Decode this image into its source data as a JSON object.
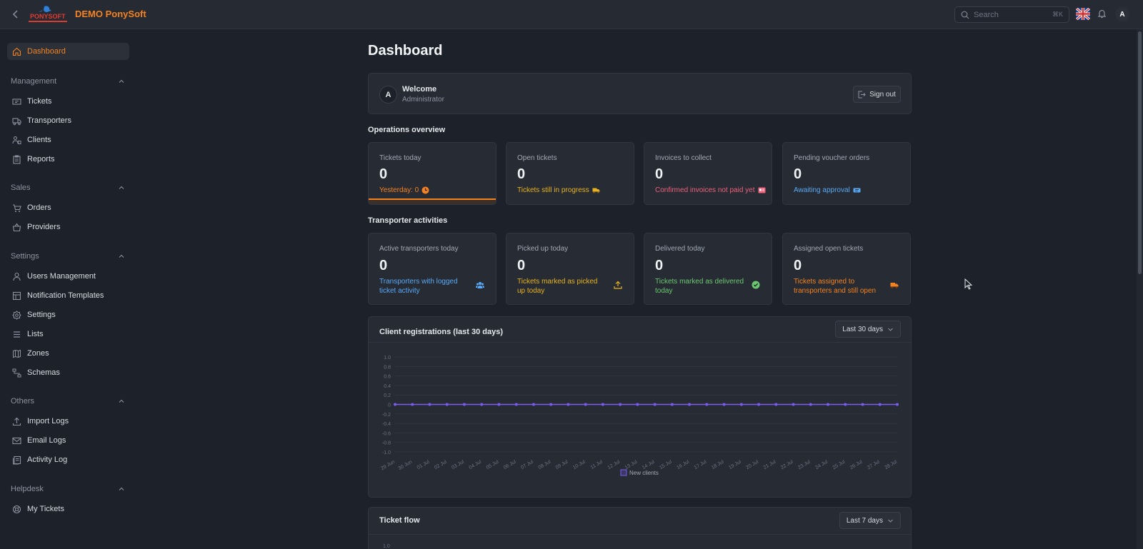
{
  "header": {
    "brand": "DEMO PonySoft",
    "logo_text": "PONYSOFT",
    "search_placeholder": "Search",
    "search_shortcut": "⌘K",
    "user_initial": "A",
    "language": "English (UK)"
  },
  "sidebar": {
    "dashboard": "Dashboard",
    "sections": {
      "management": {
        "title": "Management",
        "items": [
          "Tickets",
          "Transporters",
          "Clients",
          "Reports"
        ]
      },
      "sales": {
        "title": "Sales",
        "items": [
          "Orders",
          "Providers"
        ]
      },
      "settings": {
        "title": "Settings",
        "items": [
          "Users Management",
          "Notification Templates",
          "Settings",
          "Lists",
          "Zones",
          "Schemas"
        ]
      },
      "others": {
        "title": "Others",
        "items": [
          "Import Logs",
          "Email Logs",
          "Activity Log"
        ]
      },
      "helpdesk": {
        "title": "Helpdesk",
        "items": [
          "My Tickets"
        ]
      }
    }
  },
  "main": {
    "title": "Dashboard",
    "welcome": {
      "initial": "A",
      "title": "Welcome",
      "role": "Administrator",
      "sign_out": "Sign out"
    },
    "operations": {
      "title": "Operations overview",
      "cards": [
        {
          "label": "Tickets today",
          "value": "0",
          "sub": "Yesterday: 0"
        },
        {
          "label": "Open tickets",
          "value": "0",
          "sub": "Tickets still in progress"
        },
        {
          "label": "Invoices to collect",
          "value": "0",
          "sub": "Confirmed invoices not paid yet"
        },
        {
          "label": "Pending voucher orders",
          "value": "0",
          "sub": "Awaiting approval"
        }
      ]
    },
    "transporter": {
      "title": "Transporter activities",
      "cards": [
        {
          "label": "Active transporters today",
          "value": "0",
          "sub": "Transporters with logged ticket activity"
        },
        {
          "label": "Picked up today",
          "value": "0",
          "sub": "Tickets marked as picked up today"
        },
        {
          "label": "Delivered today",
          "value": "0",
          "sub": "Tickets marked as delivered today"
        },
        {
          "label": "Assigned open tickets",
          "value": "0",
          "sub": "Tickets assigned to transporters and still open"
        }
      ]
    },
    "registrations": {
      "title": "Client registrations (last 30 days)",
      "range": "Last 30 days"
    },
    "ticket_flow": {
      "title": "Ticket flow",
      "range": "Last 7 days",
      "first_tick": "1.0"
    }
  },
  "chart_data": {
    "type": "line",
    "title": "Client registrations (last 30 days)",
    "categories": [
      "29 Jun",
      "30 Jun",
      "01 Jul",
      "02 Jul",
      "03 Jul",
      "04 Jul",
      "05 Jul",
      "06 Jul",
      "07 Jul",
      "08 Jul",
      "09 Jul",
      "10 Jul",
      "11 Jul",
      "12 Jul",
      "13 Jul",
      "14 Jul",
      "15 Jul",
      "16 Jul",
      "17 Jul",
      "18 Jul",
      "19 Jul",
      "20 Jul",
      "21 Jul",
      "22 Jul",
      "23 Jul",
      "24 Jul",
      "25 Jul",
      "26 Jul",
      "27 Jul",
      "28 Jul"
    ],
    "series": [
      {
        "name": "New clients",
        "values": [
          0,
          0,
          0,
          0,
          0,
          0,
          0,
          0,
          0,
          0,
          0,
          0,
          0,
          0,
          0,
          0,
          0,
          0,
          0,
          0,
          0,
          0,
          0,
          0,
          0,
          0,
          0,
          0,
          0,
          0
        ]
      }
    ],
    "yticks": [
      "1.0",
      "0.8",
      "0.6",
      "0.4",
      "0.2",
      "0",
      "-0.2",
      "-0.4",
      "-0.6",
      "-0.8",
      "-1.0"
    ],
    "ylim": [
      -1,
      1
    ],
    "grid": true,
    "legend": "bottom",
    "color": "#7c5cf0"
  }
}
